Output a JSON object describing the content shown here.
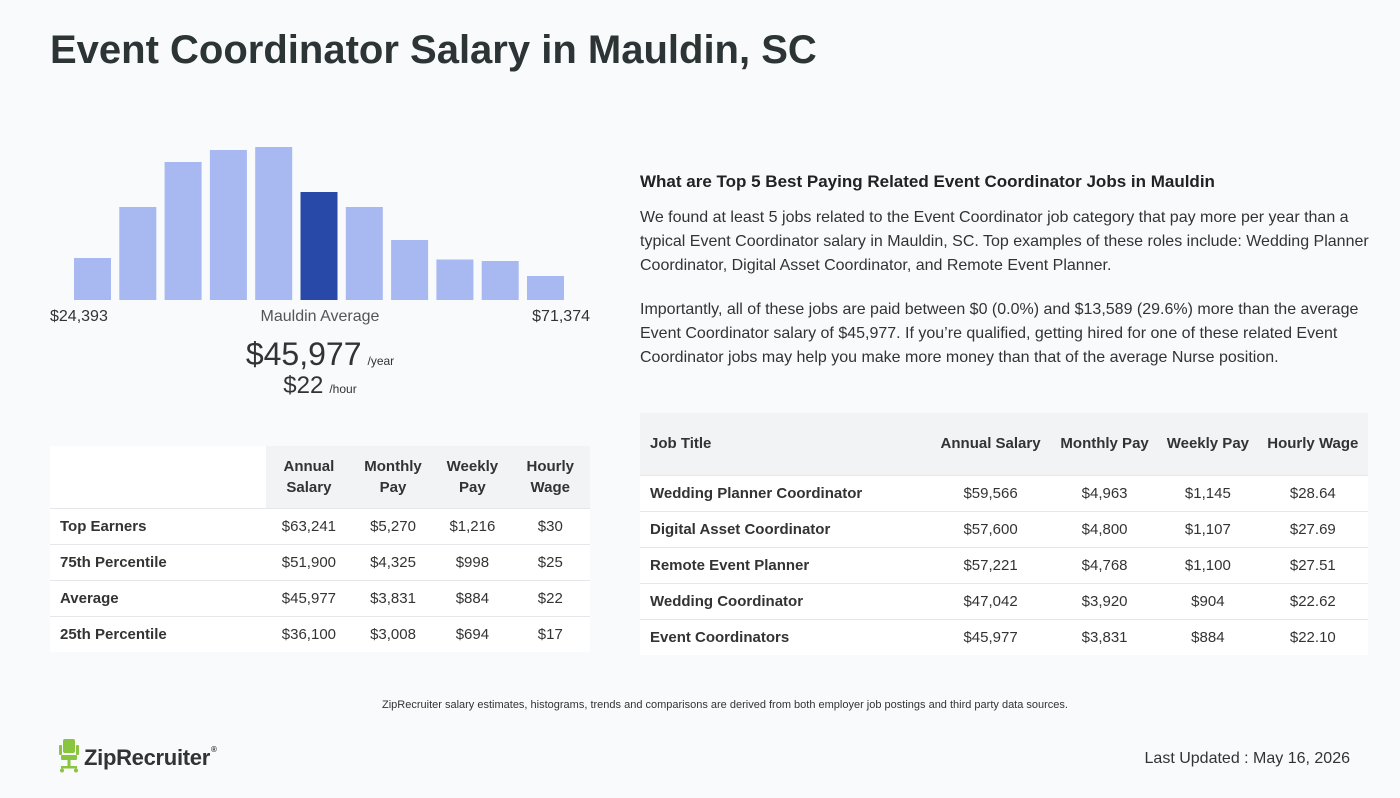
{
  "page": {
    "title": "Event Coordinator Salary in Mauldin, SC"
  },
  "histogram": {
    "min_label": "$24,393",
    "max_label": "$71,374",
    "mid_label": "Mauldin Average",
    "relative_heights": [
      0.28,
      0.62,
      0.92,
      1.0,
      1.02,
      0.72,
      0.62,
      0.4,
      0.27,
      0.26,
      0.16
    ],
    "highlight_index": 5,
    "colors": {
      "bar": "#a8b8f0",
      "highlight": "#2849a8"
    }
  },
  "average": {
    "annual": "$45,977",
    "annual_unit": "/year",
    "hourly": "$22",
    "hourly_unit": "/hour"
  },
  "percentile_table": {
    "headers": [
      "Annual Salary",
      "Monthly Pay",
      "Weekly Pay",
      "Hourly Wage"
    ],
    "rows": [
      {
        "label": "Top Earners",
        "cells": [
          "$63,241",
          "$5,270",
          "$1,216",
          "$30"
        ]
      },
      {
        "label": "75th Percentile",
        "cells": [
          "$51,900",
          "$4,325",
          "$998",
          "$25"
        ]
      },
      {
        "label": "Average",
        "cells": [
          "$45,977",
          "$3,831",
          "$884",
          "$22"
        ]
      },
      {
        "label": "25th Percentile",
        "cells": [
          "$36,100",
          "$3,008",
          "$694",
          "$17"
        ]
      }
    ]
  },
  "related": {
    "heading": "What are Top 5 Best Paying Related Event Coordinator Jobs in Mauldin",
    "paragraph1": "We found at least 5 jobs related to the Event Coordinator job category that pay more per year than a typical Event Coordinator salary in Mauldin, SC. Top examples of these roles include: Wedding Planner Coordinator, Digital Asset Coordinator, and Remote Event Planner.",
    "paragraph2": "Importantly, all of these jobs are paid between $0 (0.0%) and $13,589 (29.6%) more than the average Event Coordinator salary of $45,977. If you’re qualified, getting hired for one of these related Event Coordinator jobs may help you make more money than that of the average Nurse position."
  },
  "jobs_table": {
    "headers": [
      "Job Title",
      "Annual Salary",
      "Monthly Pay",
      "Weekly Pay",
      "Hourly Wage"
    ],
    "rows": [
      {
        "label": "Wedding Planner Coordinator",
        "cells": [
          "$59,566",
          "$4,963",
          "$1,145",
          "$28.64"
        ]
      },
      {
        "label": "Digital Asset Coordinator",
        "cells": [
          "$57,600",
          "$4,800",
          "$1,107",
          "$27.69"
        ]
      },
      {
        "label": "Remote Event Planner",
        "cells": [
          "$57,221",
          "$4,768",
          "$1,100",
          "$27.51"
        ]
      },
      {
        "label": "Wedding Coordinator",
        "cells": [
          "$47,042",
          "$3,920",
          "$904",
          "$22.62"
        ]
      },
      {
        "label": "Event Coordinators",
        "cells": [
          "$45,977",
          "$3,831",
          "$884",
          "$22.10"
        ]
      }
    ]
  },
  "footer": {
    "note": "ZipRecruiter salary estimates, histograms, trends and comparisons are derived from both employer job postings and third party data sources.",
    "logo_text": "ZipRecruiter",
    "logo_reg": "®",
    "logo_icon": "chair-icon",
    "updated": "Last Updated : May 16, 2026",
    "brand_color": "#8ac53f"
  }
}
